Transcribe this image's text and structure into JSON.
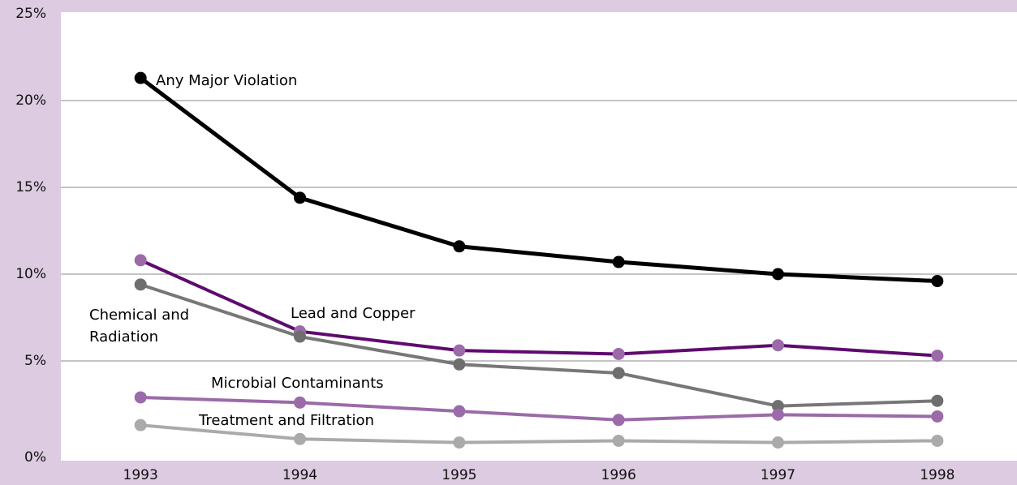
{
  "chart_data": {
    "type": "line",
    "categories": [
      "1993",
      "1994",
      "1995",
      "1996",
      "1997",
      "1998"
    ],
    "series": [
      {
        "name": "Any Major Violation",
        "color": "#000000",
        "marker_color": "#000000",
        "values": [
          21.3,
          14.4,
          11.6,
          10.7,
          10.0,
          9.6
        ]
      },
      {
        "name": "Lead and Copper",
        "color": "#5e0a6e",
        "marker_color": "#9b6aa8",
        "values": [
          10.8,
          6.7,
          5.6,
          5.4,
          5.9,
          5.3
        ]
      },
      {
        "name": "Chemical and Radiation",
        "color": "#777777",
        "marker_color": "#6e6e6e",
        "values": [
          9.4,
          6.4,
          4.8,
          4.3,
          2.4,
          2.7
        ]
      },
      {
        "name": "Microbial Contaminants",
        "color": "#9b6aa8",
        "marker_color": "#9b6aa8",
        "values": [
          2.9,
          2.6,
          2.1,
          1.6,
          1.9,
          1.8
        ]
      },
      {
        "name": "Treatment and Filtration",
        "color": "#aaaaaa",
        "marker_color": "#aaaaaa",
        "values": [
          1.3,
          0.5,
          0.3,
          0.4,
          0.3,
          0.4
        ]
      }
    ],
    "ylim": [
      0,
      25
    ],
    "yticks": [
      {
        "value": 0,
        "label": "0%"
      },
      {
        "value": 5,
        "label": "5%"
      },
      {
        "value": 10,
        "label": "10%"
      },
      {
        "value": 15,
        "label": "15%"
      },
      {
        "value": 20,
        "label": "20%"
      },
      {
        "value": 25,
        "label": "25%"
      }
    ],
    "grid": true
  }
}
